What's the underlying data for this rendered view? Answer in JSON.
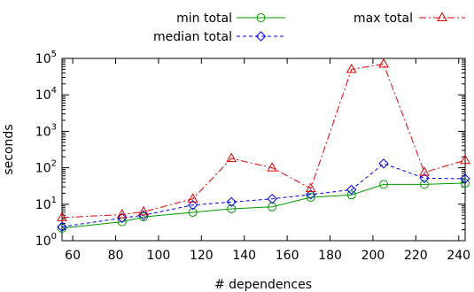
{
  "chart_data": {
    "type": "line",
    "xlabel": "# dependences",
    "ylabel": "seconds",
    "xlim": [
      55,
      243
    ],
    "ylim": [
      1,
      100000
    ],
    "yscale": "log",
    "grid": false,
    "legend_position": "top",
    "x_ticks": [
      60,
      80,
      100,
      120,
      140,
      160,
      180,
      200,
      220,
      240
    ],
    "x_tick_labels": [
      "60",
      "80",
      "100",
      "120",
      "140",
      "160",
      "180",
      "200",
      "220",
      "240"
    ],
    "y_ticks": [
      1,
      10,
      100,
      1000,
      10000,
      100000
    ],
    "y_tick_labels": [
      {
        "base": "10",
        "exp": "0"
      },
      {
        "base": "10",
        "exp": "1"
      },
      {
        "base": "10",
        "exp": "2"
      },
      {
        "base": "10",
        "exp": "3"
      },
      {
        "base": "10",
        "exp": "4"
      },
      {
        "base": "10",
        "exp": "5"
      }
    ],
    "x": [
      55,
      83,
      93,
      116,
      134,
      153,
      171,
      190,
      205,
      224,
      243
    ],
    "series": [
      {
        "name": "min total",
        "color": "#009900",
        "marker": "circle",
        "dash": "solid",
        "values": [
          2.2,
          3.3,
          4.5,
          6.0,
          7.5,
          8.5,
          15.5,
          18.0,
          35.0,
          35.0,
          38.0
        ]
      },
      {
        "name": "median total",
        "color": "#0000ee",
        "marker": "diamond",
        "dash": "dashed",
        "values": [
          2.4,
          4.2,
          5.0,
          9.5,
          11.5,
          14.0,
          18.5,
          25.0,
          130.0,
          52.0,
          50.0
        ]
      },
      {
        "name": "max total",
        "color": "#dd0000",
        "marker": "triangle",
        "dash": "dashdot",
        "values": [
          4.3,
          5.2,
          6.2,
          14.0,
          180.0,
          100.0,
          27.0,
          50000.0,
          70000.0,
          75.0,
          160.0
        ]
      }
    ]
  }
}
